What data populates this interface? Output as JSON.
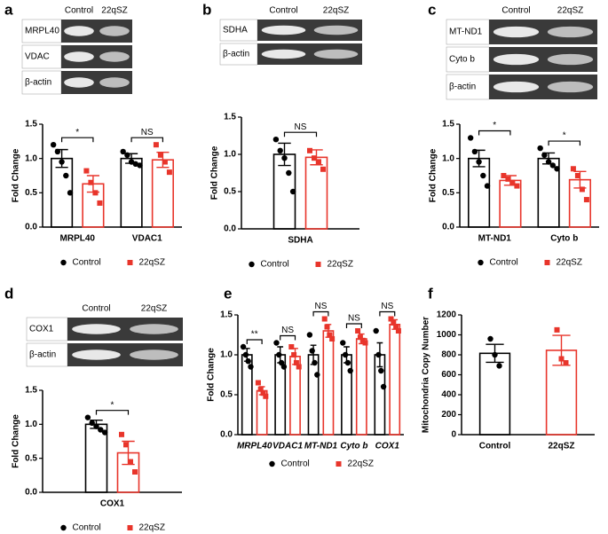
{
  "chart_data": [
    {
      "type": "bar",
      "panel": "a",
      "ylabel": "Fold Change",
      "blot": {
        "lanes": [
          "Control",
          "22qSZ"
        ],
        "bands": [
          "MRPL40",
          "VDAC",
          "β-actin"
        ]
      },
      "categories": [
        "MRPL40",
        "VDAC1"
      ],
      "annotations": [
        "*",
        "NS"
      ],
      "series": [
        {
          "name": "Control",
          "color": "#000000",
          "values": [
            1.0,
            1.0
          ],
          "errors": [
            0.13,
            0.07
          ],
          "points": [
            [
              1.2,
              1.1,
              0.95,
              0.75,
              0.5
            ],
            [
              1.1,
              1.05,
              0.95,
              0.92,
              0.9
            ]
          ]
        },
        {
          "name": "22qSZ",
          "color": "#e8352b",
          "values": [
            0.63,
            0.98
          ],
          "errors": [
            0.12,
            0.11
          ],
          "points": [
            [
              0.82,
              0.65,
              0.5,
              0.35
            ],
            [
              1.2,
              1.05,
              0.95,
              0.8
            ]
          ]
        }
      ],
      "ylim": [
        0,
        1.5
      ],
      "yticks": [
        {
          "value": 0,
          "label": "0.0"
        },
        0.5,
        {
          "value": 1,
          "label": "1.0"
        },
        1.5
      ]
    },
    {
      "type": "bar",
      "panel": "b",
      "ylabel": "Fold Change",
      "blot": {
        "lanes": [
          "Control",
          "22qSZ"
        ],
        "bands": [
          "SDHA",
          "β-actin"
        ]
      },
      "categories": [
        "SDHA"
      ],
      "annotations": [
        "NS"
      ],
      "series": [
        {
          "name": "Control",
          "color": "#000000",
          "values": [
            1.0
          ],
          "errors": [
            0.15
          ],
          "points": [
            [
              1.2,
              1.05,
              0.95,
              0.75,
              0.5
            ]
          ]
        },
        {
          "name": "22qSZ",
          "color": "#e8352b",
          "values": [
            0.96
          ],
          "errors": [
            0.1
          ],
          "points": [
            [
              1.05,
              0.95,
              0.9,
              0.8
            ]
          ]
        }
      ],
      "ylim": [
        0,
        1.5
      ],
      "yticks": [
        {
          "value": 0,
          "label": "0.0"
        },
        0.5,
        {
          "value": 1,
          "label": "1.0"
        },
        1.5
      ]
    },
    {
      "type": "bar",
      "panel": "c",
      "ylabel": "Fold Change",
      "blot": {
        "lanes": [
          "Control",
          "22qSZ"
        ],
        "bands": [
          "MT-ND1",
          "Cyto b",
          "β-actin"
        ]
      },
      "categories": [
        "MT-ND1",
        "Cyto b"
      ],
      "annotations": [
        "*",
        "*"
      ],
      "series": [
        {
          "name": "Control",
          "color": "#000000",
          "values": [
            1.0,
            1.0
          ],
          "errors": [
            0.12,
            0.08
          ],
          "points": [
            [
              1.3,
              1.1,
              0.95,
              0.75,
              0.6
            ],
            [
              1.15,
              1.05,
              0.95,
              0.9,
              0.85
            ]
          ]
        },
        {
          "name": "22qSZ",
          "color": "#e8352b",
          "values": [
            0.68,
            0.69
          ],
          "errors": [
            0.07,
            0.12
          ],
          "points": [
            [
              0.75,
              0.7,
              0.65,
              0.6
            ],
            [
              0.85,
              0.75,
              0.55,
              0.4
            ]
          ]
        }
      ],
      "ylim": [
        0,
        1.5
      ],
      "yticks": [
        {
          "value": 0,
          "label": "0.0"
        },
        0.5,
        {
          "value": 1,
          "label": "1.0"
        },
        1.5
      ]
    },
    {
      "type": "bar",
      "panel": "d",
      "ylabel": "Fold Change",
      "blot": {
        "lanes": [
          "Control",
          "22qSZ"
        ],
        "bands": [
          "COX1",
          "β-actin"
        ]
      },
      "categories": [
        "COX1"
      ],
      "annotations": [
        "*"
      ],
      "series": [
        {
          "name": "Control",
          "color": "#000000",
          "values": [
            1.0
          ],
          "errors": [
            0.06
          ],
          "points": [
            [
              1.1,
              1.02,
              0.97,
              0.92,
              0.88
            ]
          ]
        },
        {
          "name": "22qSZ",
          "color": "#e8352b",
          "values": [
            0.58
          ],
          "errors": [
            0.17
          ],
          "points": [
            [
              0.85,
              0.7,
              0.45,
              0.3
            ]
          ]
        }
      ],
      "ylim": [
        0,
        1.5
      ],
      "yticks": [
        {
          "value": 0,
          "label": "0.0"
        },
        0.5,
        {
          "value": 1,
          "label": "1.0"
        },
        1.5
      ]
    },
    {
      "type": "bar",
      "panel": "e",
      "ylabel": "Fold Change",
      "categories": [
        "MRPL40",
        "VDAC1",
        "MT-ND1",
        "Cyto b",
        "COX1"
      ],
      "annotations": [
        "**",
        "NS",
        "NS",
        "NS",
        "NS"
      ],
      "series": [
        {
          "name": "Control",
          "color": "#000000",
          "values": [
            1.0,
            1.0,
            1.0,
            1.0,
            1.0
          ],
          "errors": [
            0.08,
            0.1,
            0.12,
            0.1,
            0.15
          ],
          "points": [
            [
              1.1,
              1.0,
              0.92,
              0.85
            ],
            [
              1.15,
              1.0,
              0.9,
              0.85
            ],
            [
              1.25,
              1.05,
              0.9,
              0.75
            ],
            [
              1.15,
              1.0,
              0.9,
              0.8
            ],
            [
              1.3,
              1.0,
              0.8,
              0.6
            ]
          ]
        },
        {
          "name": "22qSZ",
          "color": "#e8352b",
          "values": [
            0.55,
            0.98,
            1.3,
            1.2,
            1.38
          ],
          "errors": [
            0.05,
            0.1,
            0.08,
            0.06,
            0.06
          ],
          "points": [
            [
              0.65,
              0.57,
              0.52,
              0.48
            ],
            [
              1.1,
              1.0,
              0.9,
              0.85
            ],
            [
              1.45,
              1.35,
              1.25,
              1.2
            ],
            [
              1.3,
              1.22,
              1.18,
              1.15
            ],
            [
              1.45,
              1.4,
              1.35,
              1.3
            ]
          ]
        }
      ],
      "ylim": [
        0,
        1.5
      ],
      "yticks": [
        {
          "value": 0,
          "label": "0.0"
        },
        0.5,
        {
          "value": 1,
          "label": "1.0"
        },
        1.5
      ]
    },
    {
      "type": "bar",
      "panel": "f",
      "ylabel": "Mitochondria Copy Number",
      "categories": [
        "Control",
        "22qSZ"
      ],
      "colors": [
        "#000000",
        "#e8352b"
      ],
      "values": [
        815,
        845
      ],
      "errors": [
        90,
        150
      ],
      "points": [
        [
          960,
          800,
          690
        ],
        [
          1050,
          760,
          720
        ]
      ],
      "ylim": [
        0,
        1200
      ],
      "yticks": [
        0,
        200,
        400,
        600,
        800,
        1000,
        1200
      ]
    }
  ]
}
